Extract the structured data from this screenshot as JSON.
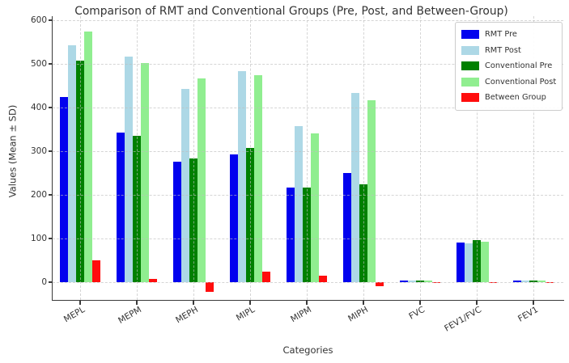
{
  "chart_data": {
    "type": "bar",
    "title": "Comparison of RMT and Conventional Groups (Pre, Post, and Between-Group)",
    "xlabel": "Categories",
    "ylabel": "Values (Mean ± SD)",
    "ylim": [
      -40,
      610
    ],
    "yticks": [
      0,
      100,
      200,
      300,
      400,
      500,
      600
    ],
    "grid": true,
    "legend_position": "upper right",
    "categories": [
      "MEPL",
      "MEPM",
      "MEPH",
      "MIPL",
      "MIPM",
      "MIPH",
      "FVC",
      "FEV1/FVC",
      "FEV1"
    ],
    "series": [
      {
        "name": "RMT Pre",
        "color": "#0202EE",
        "values": [
          425,
          343,
          276,
          292,
          217,
          250,
          4,
          90,
          3
        ]
      },
      {
        "name": "RMT Post",
        "color": "#ADD8E6",
        "values": [
          542,
          517,
          443,
          483,
          358,
          433,
          4.5,
          89,
          3.5
        ]
      },
      {
        "name": "Conventional Pre",
        "color": "#008000",
        "values": [
          507,
          335,
          284,
          308,
          217,
          225,
          4,
          96,
          3
        ]
      },
      {
        "name": "Conventional Post",
        "color": "#90EE90",
        "values": [
          575,
          501,
          466,
          475,
          341,
          417,
          4.5,
          92,
          3.5
        ]
      },
      {
        "name": "Between Group",
        "color": "#FF0D0D",
        "values": [
          50,
          8,
          -22,
          25,
          15,
          -10,
          0.3,
          -2,
          0.2
        ]
      }
    ]
  }
}
